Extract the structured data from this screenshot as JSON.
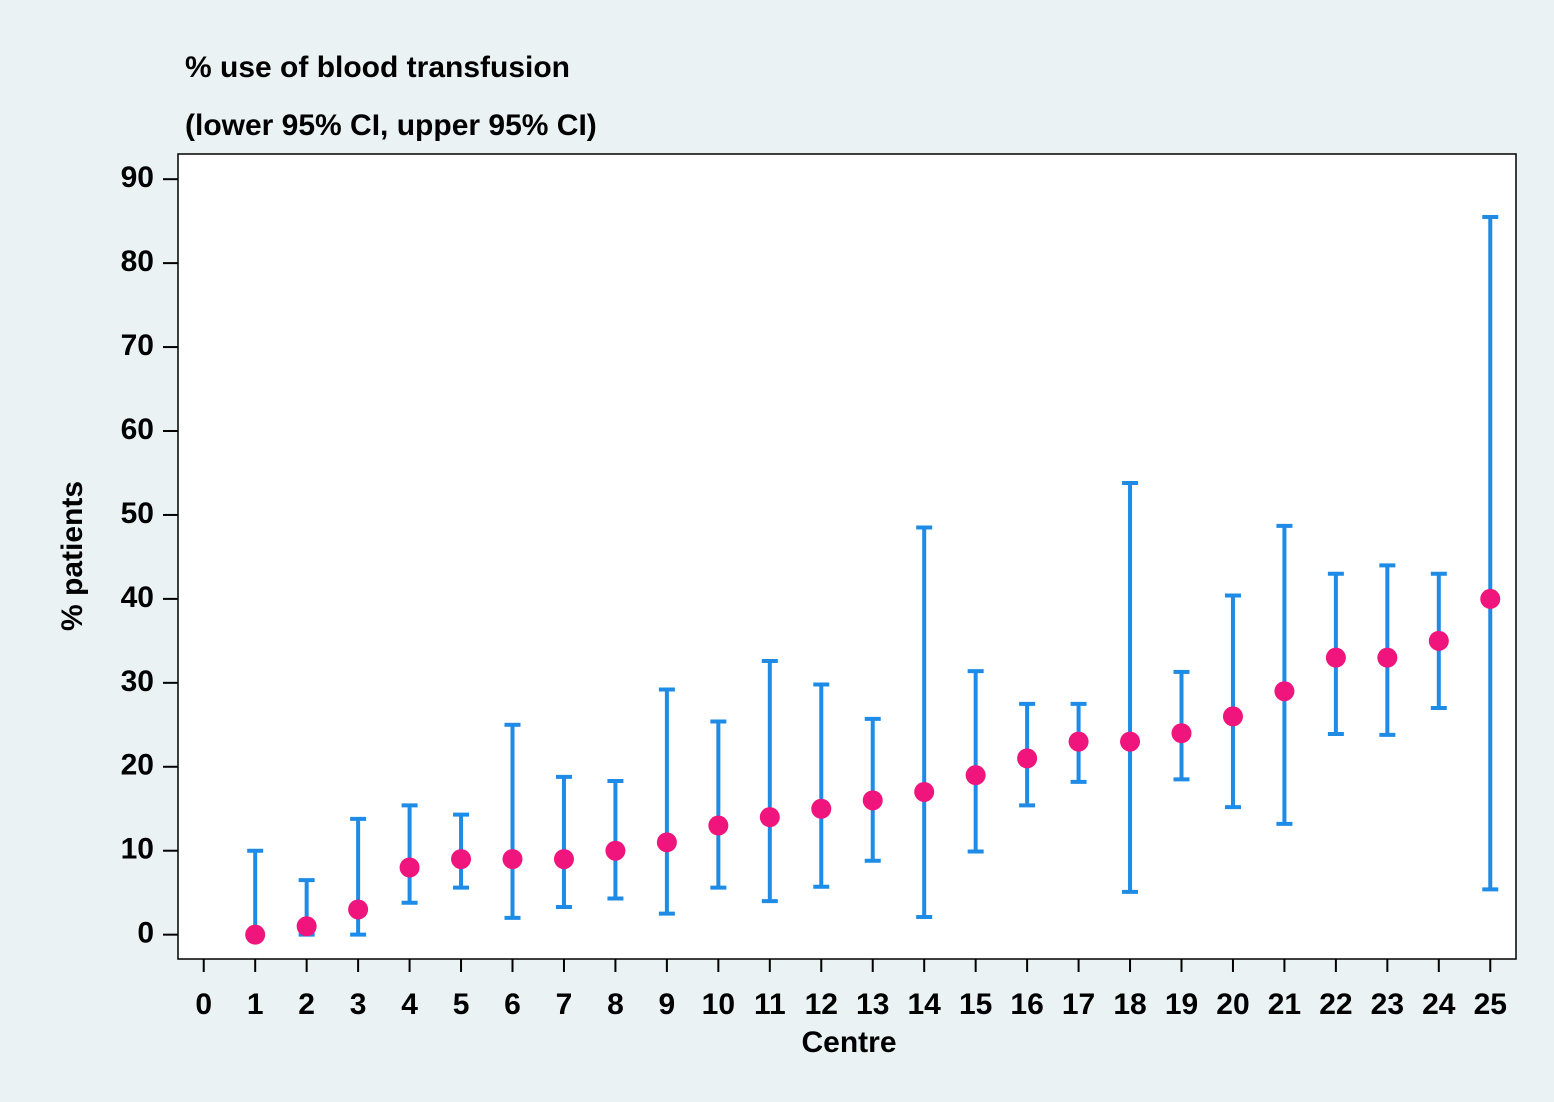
{
  "chart_data": {
    "type": "errorbar",
    "title": "% use of blood transfusion",
    "subtitle": "(lower 95% CI, upper 95% CI)",
    "x_label": "Centre",
    "y_label": "% patients",
    "x": [
      1,
      2,
      3,
      4,
      5,
      6,
      7,
      8,
      9,
      10,
      11,
      12,
      13,
      14,
      15,
      16,
      17,
      18,
      19,
      20,
      21,
      22,
      23,
      24,
      25
    ],
    "values": [
      0,
      1,
      3,
      8,
      9,
      9,
      9,
      10,
      11,
      13,
      14,
      15,
      16,
      17,
      19,
      21,
      23,
      23,
      24,
      26,
      29,
      33,
      33,
      35,
      40
    ],
    "lower": [
      0,
      0,
      0,
      3.8,
      5.6,
      2.0,
      3.3,
      4.3,
      2.5,
      5.6,
      4.0,
      5.7,
      8.8,
      2.1,
      9.9,
      15.4,
      18.2,
      5.1,
      18.5,
      15.2,
      13.2,
      23.9,
      23.8,
      27.0,
      5.4
    ],
    "upper": [
      10.0,
      6.5,
      13.8,
      15.4,
      14.3,
      25.0,
      18.8,
      18.3,
      29.2,
      25.4,
      32.6,
      29.8,
      25.7,
      48.5,
      31.4,
      27.5,
      27.5,
      53.8,
      31.3,
      40.4,
      48.7,
      43.0,
      44.0,
      43.0,
      85.5
    ],
    "point_color": "#f0157d",
    "bar_color": "#1e8ce6",
    "xlim": [
      -0.5,
      25.5
    ],
    "ylim": [
      -2.9,
      93
    ],
    "xticks": [
      0,
      1,
      2,
      3,
      4,
      5,
      6,
      7,
      8,
      9,
      10,
      11,
      12,
      13,
      14,
      15,
      16,
      17,
      18,
      19,
      20,
      21,
      22,
      23,
      24,
      25
    ],
    "yticks": [
      0,
      10,
      20,
      30,
      40,
      50,
      60,
      70,
      80,
      90
    ],
    "grid": false
  }
}
